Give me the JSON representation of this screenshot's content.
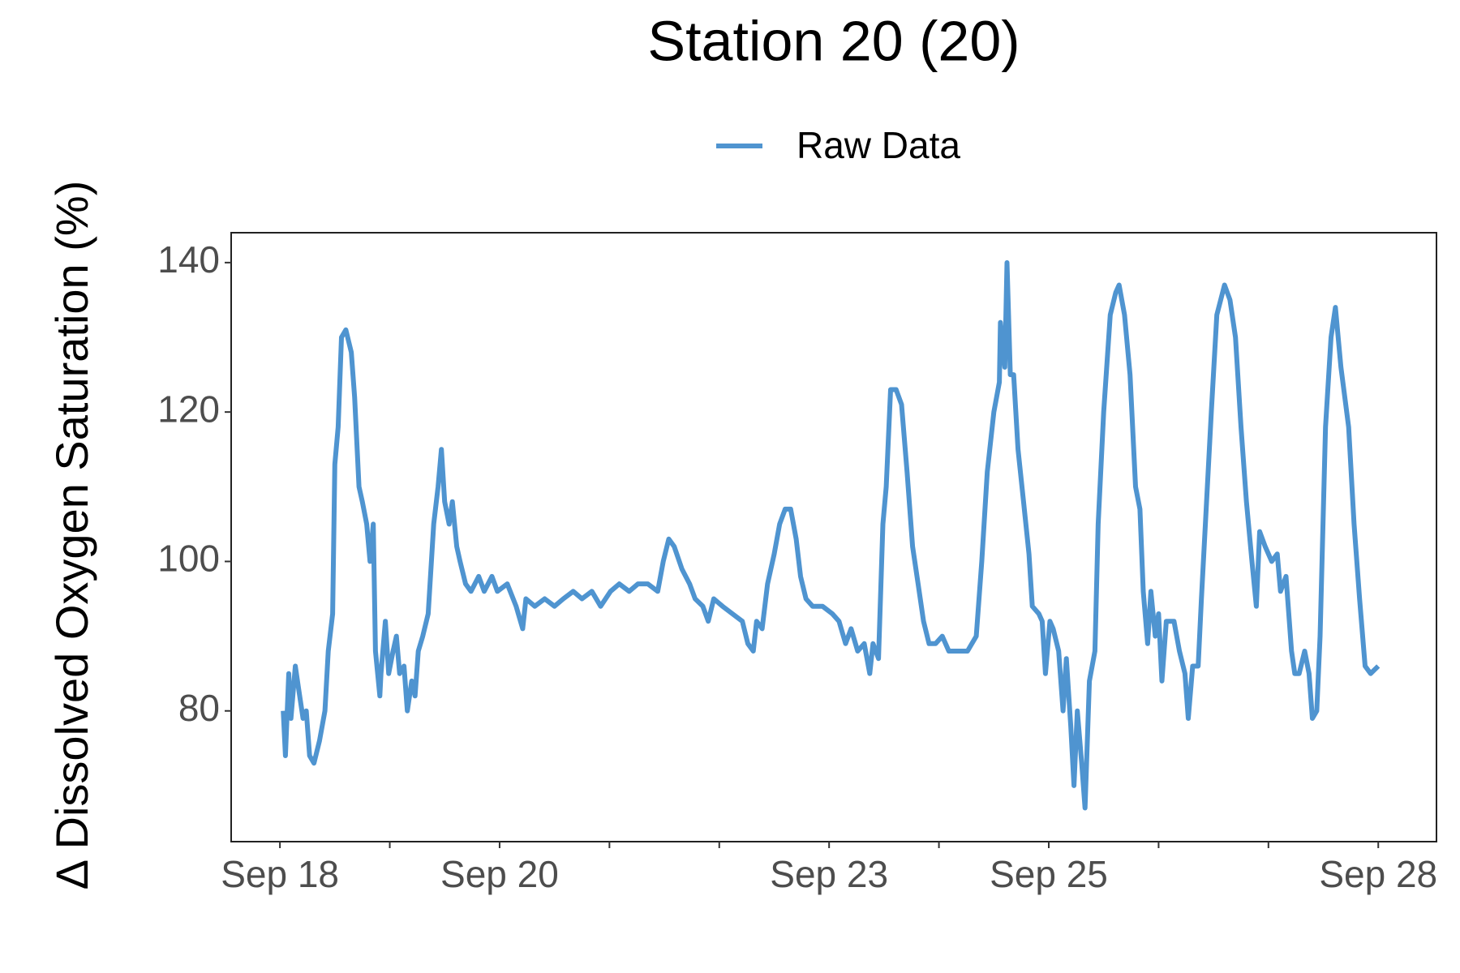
{
  "chart_data": {
    "type": "line",
    "title": "Station 20 (20)",
    "y_label": "Δ Dissolved Oxygen Saturation (%)",
    "xlim": [
      17.556,
      28.53
    ],
    "ylim": [
      62.5,
      144
    ],
    "xticks": [
      {
        "value": 18,
        "label": "Sep 18"
      },
      {
        "value": 19,
        "label": null
      },
      {
        "value": 20,
        "label": "Sep 20"
      },
      {
        "value": 21,
        "label": null
      },
      {
        "value": 22,
        "label": null
      },
      {
        "value": 23,
        "label": "Sep 23"
      },
      {
        "value": 24,
        "label": null
      },
      {
        "value": 25,
        "label": "Sep 25"
      },
      {
        "value": 26,
        "label": null
      },
      {
        "value": 27,
        "label": null
      },
      {
        "value": 28,
        "label": "Sep 28"
      }
    ],
    "yticks": [
      80,
      100,
      120,
      140
    ],
    "grid": false,
    "legend": "top",
    "series": [
      {
        "name": "Raw Data",
        "color": "#4f94d0",
        "x": [
          18.03,
          18.05,
          18.08,
          18.1,
          18.14,
          18.17,
          18.21,
          18.24,
          18.27,
          18.31,
          18.36,
          18.41,
          18.44,
          18.48,
          18.5,
          18.53,
          18.56,
          18.6,
          18.65,
          18.68,
          18.72,
          18.75,
          18.79,
          18.82,
          18.85,
          18.87,
          18.91,
          18.92,
          18.96,
          18.99,
          19.03,
          19.06,
          19.09,
          19.13,
          19.16,
          19.2,
          19.23,
          19.26,
          19.3,
          19.35,
          19.4,
          19.44,
          19.47,
          19.5,
          19.54,
          19.57,
          19.61,
          19.64,
          19.69,
          19.74,
          19.81,
          19.86,
          19.93,
          19.98,
          20.07,
          20.15,
          20.21,
          20.24,
          20.32,
          20.41,
          20.5,
          20.58,
          20.67,
          20.75,
          20.84,
          20.92,
          21.01,
          21.09,
          21.18,
          21.26,
          21.35,
          21.44,
          21.49,
          21.54,
          21.59,
          21.66,
          21.73,
          21.78,
          21.85,
          21.9,
          21.95,
          22.03,
          22.12,
          22.21,
          22.26,
          22.31,
          22.34,
          22.39,
          22.44,
          22.5,
          22.55,
          22.6,
          22.65,
          22.7,
          22.74,
          22.79,
          22.85,
          22.94,
          23.03,
          23.09,
          23.15,
          23.2,
          23.26,
          23.32,
          23.37,
          23.4,
          23.45,
          23.49,
          23.52,
          23.56,
          23.61,
          23.66,
          23.71,
          23.76,
          23.81,
          23.86,
          23.91,
          23.97,
          24.03,
          24.09,
          24.17,
          24.26,
          24.34,
          24.39,
          24.44,
          24.5,
          24.55,
          24.56,
          24.6,
          24.62,
          24.65,
          24.68,
          24.72,
          24.77,
          24.82,
          24.85,
          24.91,
          24.94,
          24.97,
          25.01,
          25.04,
          25.09,
          25.13,
          25.16,
          25.2,
          25.23,
          25.26,
          25.3,
          25.33,
          25.37,
          25.42,
          25.45,
          25.5,
          25.56,
          25.61,
          25.64,
          25.69,
          25.74,
          25.79,
          25.83,
          25.86,
          25.9,
          25.93,
          25.97,
          26.0,
          26.03,
          26.07,
          26.14,
          26.19,
          26.24,
          26.27,
          26.31,
          26.36,
          26.39,
          26.48,
          26.53,
          26.6,
          26.65,
          26.7,
          26.75,
          26.8,
          26.85,
          26.89,
          26.92,
          26.97,
          27.03,
          27.08,
          27.11,
          27.16,
          27.21,
          27.24,
          27.28,
          27.33,
          27.37,
          27.4,
          27.44,
          27.47,
          27.52,
          27.57,
          27.61,
          27.66,
          27.73,
          27.78,
          27.83,
          27.88,
          27.93,
          28.0
        ],
        "values": [
          80,
          74,
          85,
          79,
          86,
          83,
          79,
          80,
          74,
          73,
          76,
          80,
          88,
          93,
          113,
          118,
          130,
          131,
          128,
          122,
          110,
          108,
          105,
          100,
          105,
          88,
          82,
          85,
          92,
          85,
          88,
          90,
          85,
          86,
          80,
          84,
          82,
          88,
          90,
          93,
          105,
          110,
          115,
          108,
          105,
          108,
          102,
          100,
          97,
          96,
          98,
          96,
          98,
          96,
          97,
          94,
          91,
          95,
          94,
          95,
          94,
          95,
          96,
          95,
          96,
          94,
          96,
          97,
          96,
          97,
          97,
          96,
          100,
          103,
          102,
          99,
          97,
          95,
          94,
          92,
          95,
          94,
          93,
          92,
          89,
          88,
          92,
          91,
          97,
          101,
          105,
          107,
          107,
          103,
          98,
          95,
          94,
          94,
          93,
          92,
          89,
          91,
          88,
          89,
          85,
          89,
          87,
          105,
          110,
          123,
          123,
          121,
          112,
          102,
          97,
          92,
          89,
          89,
          90,
          88,
          88,
          88,
          90,
          100,
          112,
          120,
          124,
          132,
          126,
          140,
          125,
          125,
          115,
          108,
          101,
          94,
          93,
          92,
          85,
          92,
          91,
          88,
          80,
          87,
          78,
          70,
          80,
          73,
          67,
          84,
          88,
          105,
          120,
          133,
          136,
          137,
          133,
          125,
          110,
          107,
          96,
          89,
          96,
          90,
          93,
          84,
          92,
          92,
          88,
          85,
          79,
          86,
          86,
          95,
          120,
          133,
          137,
          135,
          130,
          118,
          108,
          100,
          94,
          104,
          102,
          100,
          101,
          96,
          98,
          88,
          85,
          85,
          88,
          85,
          79,
          80,
          90,
          118,
          130,
          134,
          126,
          118,
          105,
          95,
          86,
          85,
          86
        ]
      }
    ]
  }
}
